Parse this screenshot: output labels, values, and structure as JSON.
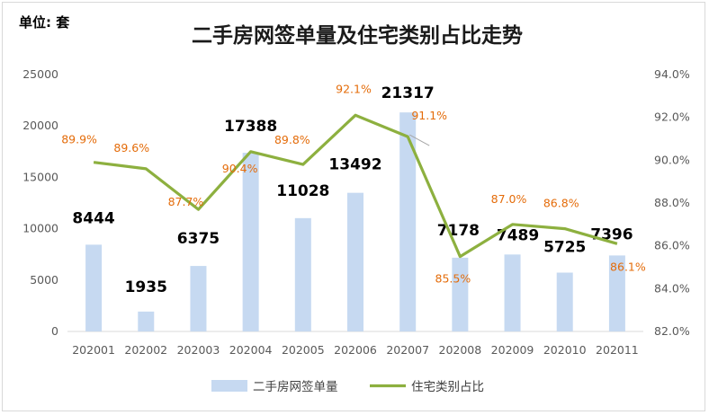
{
  "unit_label": "单位: 套",
  "chart_data": {
    "type": "bar+line",
    "title": "二手房网签单量及住宅类别占比走势",
    "categories": [
      "202001",
      "202002",
      "202003",
      "202004",
      "202005",
      "202006",
      "202007",
      "202008",
      "202009",
      "202010",
      "202011"
    ],
    "series": [
      {
        "name": "二手房网签单量",
        "type": "bar",
        "axis": "left",
        "color": "#c6d9f1",
        "values": [
          8444,
          1935,
          6375,
          17388,
          11028,
          13492,
          21317,
          7178,
          7489,
          5725,
          7396
        ],
        "labels": [
          "8444",
          "1935",
          "6375",
          "17388",
          "11028",
          "13492",
          "21317",
          "7178",
          "7489",
          "5725",
          "7396"
        ]
      },
      {
        "name": "住宅类别占比",
        "type": "line",
        "axis": "right",
        "color": "#8db03f",
        "values": [
          89.9,
          89.6,
          87.7,
          90.4,
          89.8,
          92.1,
          91.1,
          85.5,
          87.0,
          86.8,
          86.1
        ],
        "labels": [
          "89.9%",
          "89.6%",
          "87.7%",
          "90.4%",
          "89.8%",
          "92.1%",
          "91.1%",
          "85.5%",
          "87.0%",
          "86.8%",
          "86.1%"
        ]
      }
    ],
    "left_axis": {
      "min": 0,
      "max": 25000,
      "ticks": [
        "0",
        "5000",
        "10000",
        "15000",
        "20000",
        "25000"
      ]
    },
    "right_axis": {
      "min": 82,
      "max": 94,
      "ticks": [
        "82.0%",
        "84.0%",
        "86.0%",
        "88.0%",
        "90.0%",
        "92.0%",
        "94.0%"
      ]
    },
    "legend_position": "bottom",
    "grid": false
  }
}
